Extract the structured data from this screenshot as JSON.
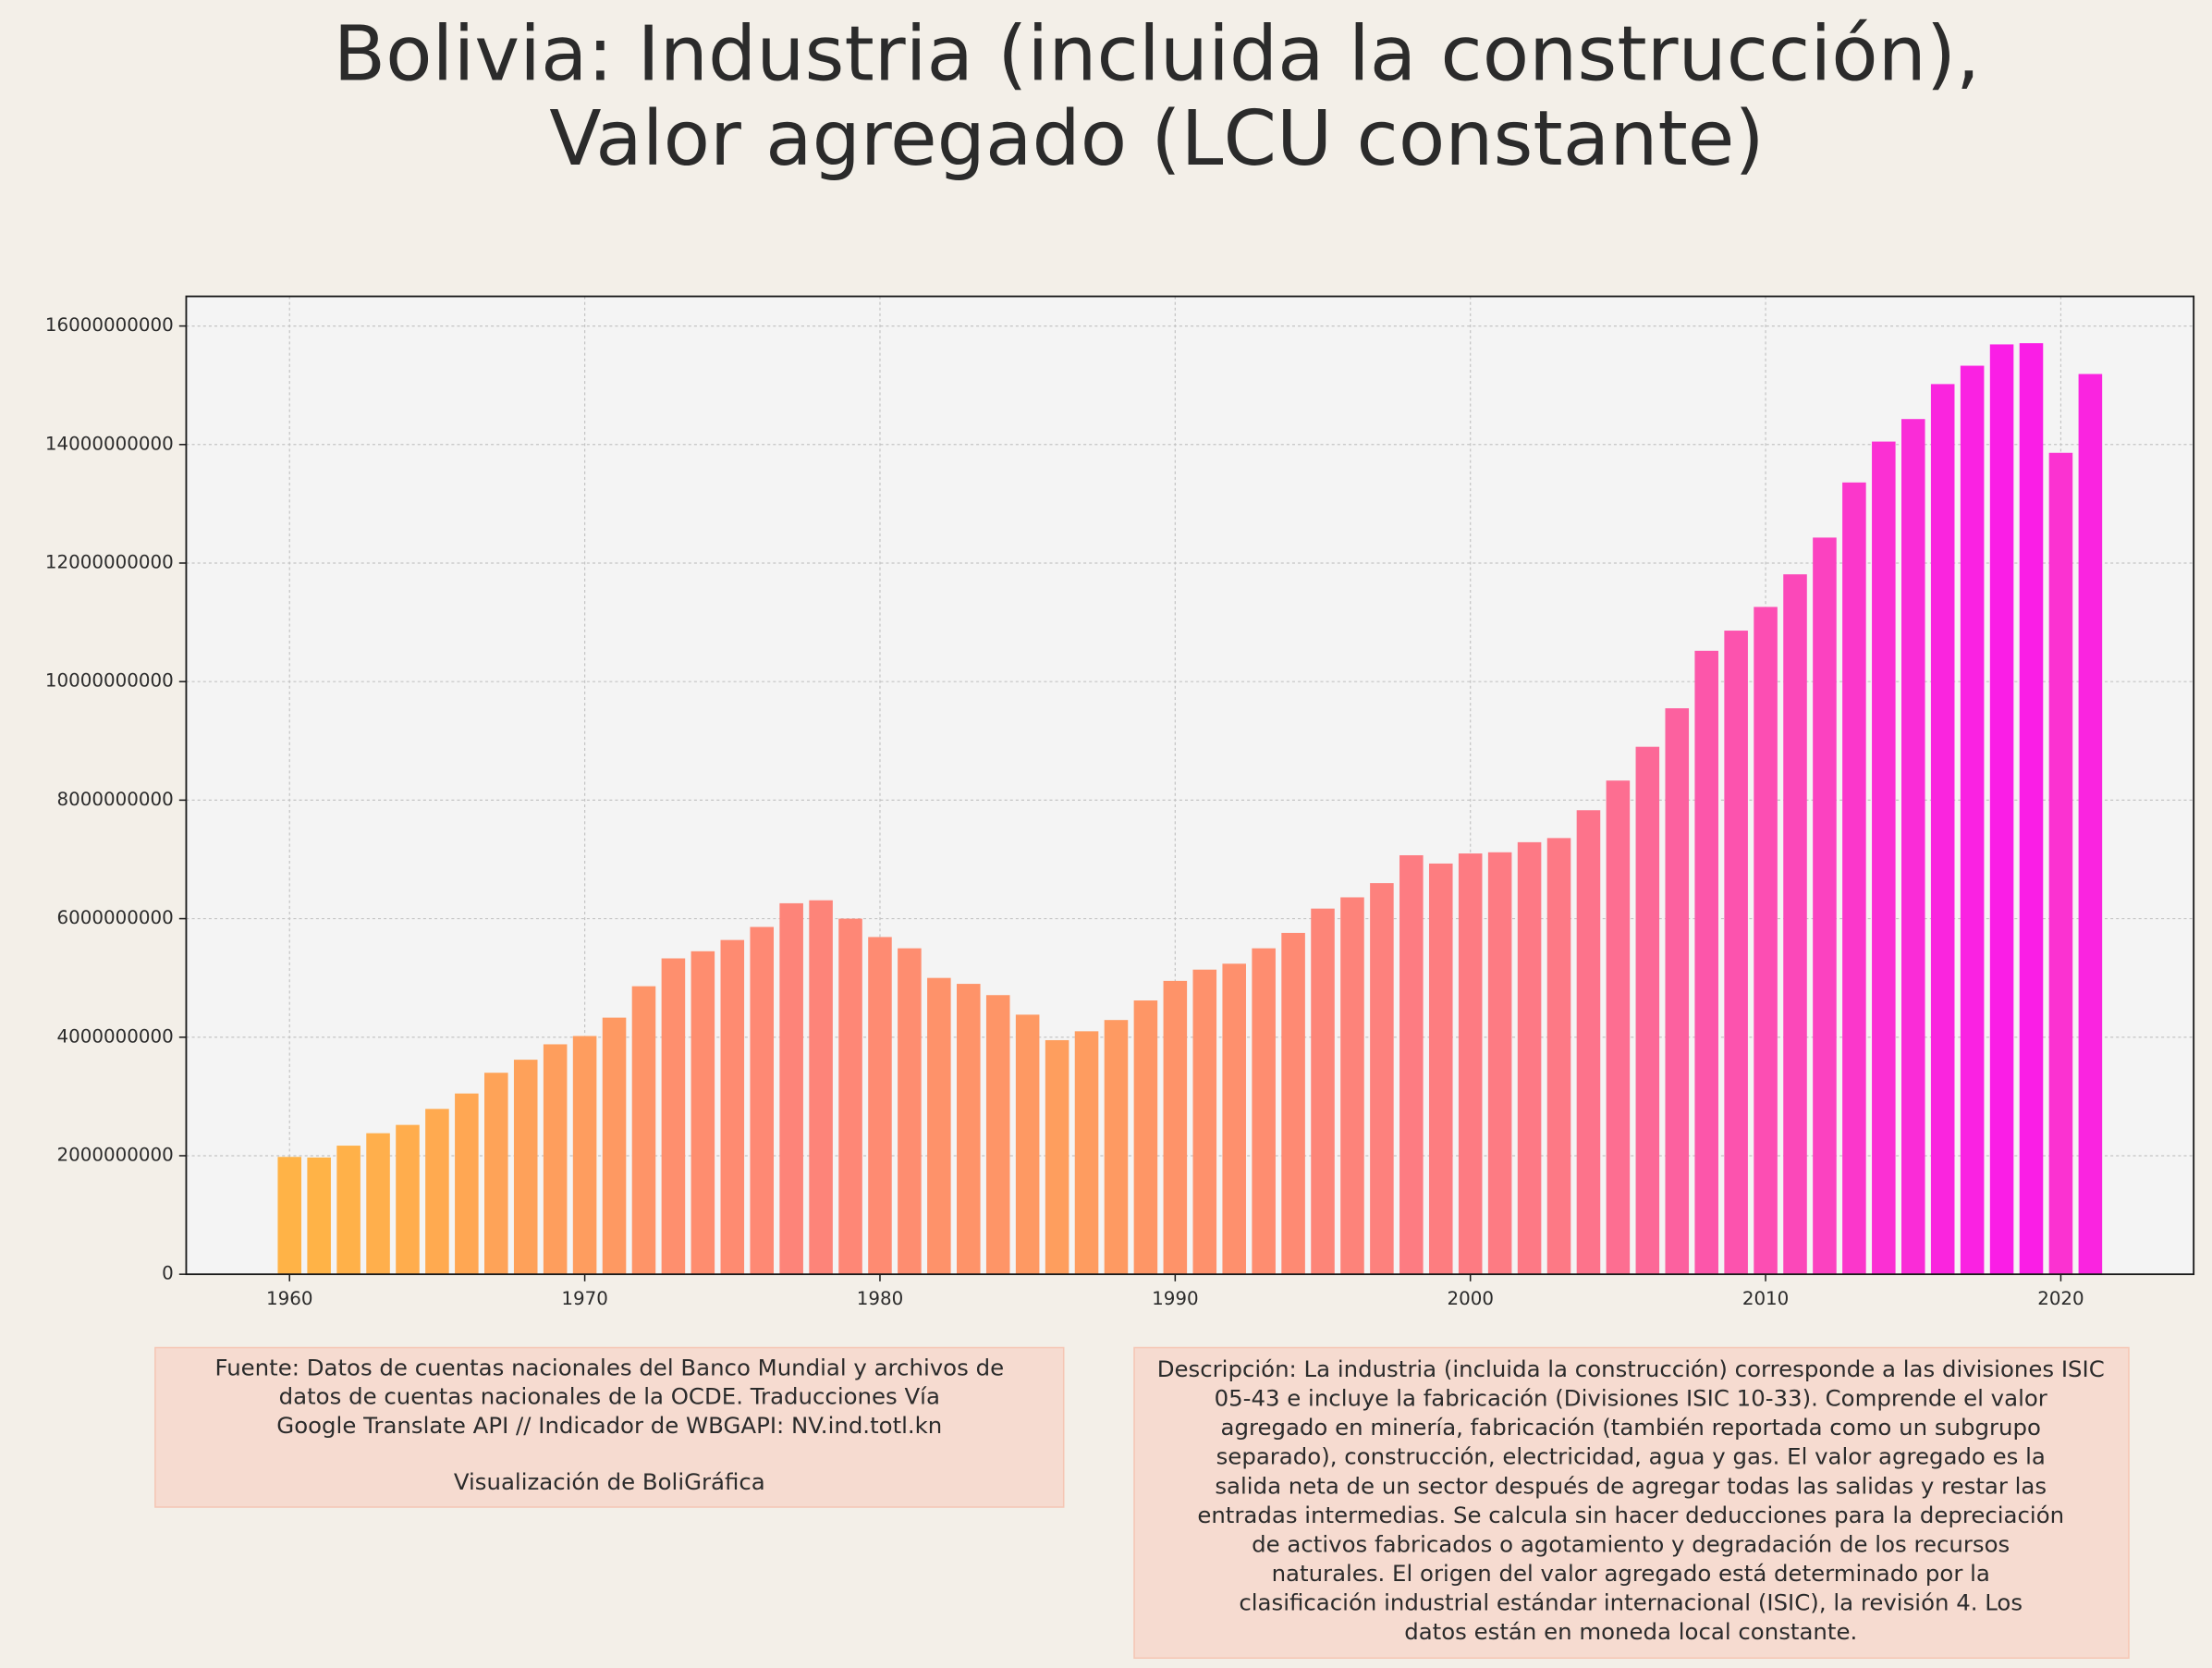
{
  "chart_data": {
    "type": "bar",
    "title": [
      "Bolivia:  Industria (incluida la construcción),",
      "Valor agregado (LCU constante)"
    ],
    "x": [
      1960,
      1961,
      1962,
      1963,
      1964,
      1965,
      1966,
      1967,
      1968,
      1969,
      1970,
      1971,
      1972,
      1973,
      1974,
      1975,
      1976,
      1977,
      1978,
      1979,
      1980,
      1981,
      1982,
      1983,
      1984,
      1985,
      1986,
      1987,
      1988,
      1989,
      1990,
      1991,
      1992,
      1993,
      1994,
      1995,
      1996,
      1997,
      1998,
      1999,
      2000,
      2001,
      2002,
      2003,
      2004,
      2005,
      2006,
      2007,
      2008,
      2009,
      2010,
      2011,
      2012,
      2013,
      2014,
      2015,
      2016,
      2017,
      2018,
      2019,
      2020,
      2021
    ],
    "values": [
      1980000000,
      1970000000,
      2170000000,
      2380000000,
      2520000000,
      2790000000,
      3050000000,
      3400000000,
      3620000000,
      3880000000,
      4020000000,
      4330000000,
      4860000000,
      5330000000,
      5450000000,
      5640000000,
      5860000000,
      6260000000,
      6310000000,
      6000000000,
      5690000000,
      5500000000,
      5000000000,
      4900000000,
      4710000000,
      4380000000,
      3950000000,
      4100000000,
      4290000000,
      4620000000,
      4950000000,
      5140000000,
      5240000000,
      5500000000,
      5760000000,
      6170000000,
      6360000000,
      6600000000,
      7070000000,
      6930000000,
      7100000000,
      7120000000,
      7290000000,
      7360000000,
      7830000000,
      8330000000,
      8900000000,
      9550000000,
      10520000000,
      10860000000,
      11260000000,
      11810000000,
      12430000000,
      13360000000,
      14050000000,
      14430000000,
      15020000000,
      15330000000,
      15690000000,
      15710000000,
      13860000000,
      15190000000
    ],
    "colormap": [
      "#ffb347",
      "#fa1ee6"
    ],
    "xlim": [
      1956.5,
      2024.5
    ],
    "xticks": [
      1960,
      1970,
      1980,
      1990,
      2000,
      2010,
      2020
    ],
    "ylim": [
      0,
      16500000000
    ],
    "yticks": [
      0,
      2000000000,
      4000000000,
      6000000000,
      8000000000,
      10000000000,
      12000000000,
      14000000000,
      16000000000
    ],
    "grid": true,
    "source": [
      "Fuente: Datos de cuentas nacionales del Banco Mundial y archivos de",
      "datos de cuentas nacionales de la OCDE. Traducciones Vía",
      "Google Translate API // Indicador de WBGAPI: NV.ind.totl.kn"
    ],
    "credit": "Visualización de BoliGráfica",
    "description": [
      "Descripción: La industria (incluida la construcción) corresponde a las divisiones ISIC",
      "05-43 e incluye la fabricación (Divisiones ISIC 10-33). Comprende el valor",
      "agregado en minería, fabricación (también reportada como un subgrupo",
      "separado), construcción, electricidad, agua y gas. El valor agregado es la",
      "salida neta de un sector después de agregar todas las salidas y restar las",
      "entradas intermedias. Se calcula sin hacer deducciones para la depreciación",
      "de activos fabricados o agotamiento y degradación de los recursos",
      "naturales. El origen del valor agregado está determinado por la",
      "clasificación industrial estándar internacional (ISIC), la revisión 4. Los",
      "datos están en moneda local constante."
    ]
  }
}
